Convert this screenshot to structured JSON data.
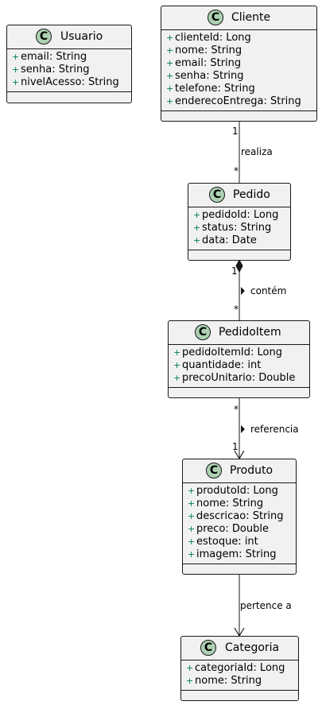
{
  "classes": {
    "usuario": {
      "name": "Usuario",
      "stereotype": "C",
      "attributes": [
        {
          "vis": "+",
          "text": "email: String"
        },
        {
          "vis": "+",
          "text": "senha: String"
        },
        {
          "vis": "+",
          "text": "nivelAcesso: String"
        }
      ]
    },
    "cliente": {
      "name": "Cliente",
      "stereotype": "C",
      "attributes": [
        {
          "vis": "+",
          "text": "clienteId: Long"
        },
        {
          "vis": "+",
          "text": "nome: String"
        },
        {
          "vis": "+",
          "text": "email: String"
        },
        {
          "vis": "+",
          "text": "senha: String"
        },
        {
          "vis": "+",
          "text": "telefone: String"
        },
        {
          "vis": "+",
          "text": "enderecoEntrega: String"
        }
      ]
    },
    "pedido": {
      "name": "Pedido",
      "stereotype": "C",
      "attributes": [
        {
          "vis": "+",
          "text": "pedidoId: Long"
        },
        {
          "vis": "+",
          "text": "status: String"
        },
        {
          "vis": "+",
          "text": "data: Date"
        }
      ]
    },
    "pedidoitem": {
      "name": "PedidoItem",
      "stereotype": "C",
      "attributes": [
        {
          "vis": "+",
          "text": "pedidoItemId: Long"
        },
        {
          "vis": "+",
          "text": "quantidade: int"
        },
        {
          "vis": "+",
          "text": "precoUnitario: Double"
        }
      ]
    },
    "produto": {
      "name": "Produto",
      "stereotype": "C",
      "attributes": [
        {
          "vis": "+",
          "text": "produtoId: Long"
        },
        {
          "vis": "+",
          "text": "nome: String"
        },
        {
          "vis": "+",
          "text": "descricao: String"
        },
        {
          "vis": "+",
          "text": "preco: Double"
        },
        {
          "vis": "+",
          "text": "estoque: int"
        },
        {
          "vis": "+",
          "text": "imagem: String"
        }
      ]
    },
    "categoria": {
      "name": "Categoria",
      "stereotype": "C",
      "attributes": [
        {
          "vis": "+",
          "text": "categoriaId: Long"
        },
        {
          "vis": "+",
          "text": "nome: String"
        }
      ]
    }
  },
  "relations": {
    "realiza": {
      "label": "realiza",
      "from_mult": "1",
      "to_mult": "*"
    },
    "contem": {
      "label": "contém",
      "direction": ">",
      "from_mult": "1",
      "to_mult": "*"
    },
    "referencia": {
      "label": "referencia",
      "direction": ">",
      "from_mult": "*",
      "to_mult": "1"
    },
    "pertence": {
      "label": "pertence a"
    }
  },
  "colors": {
    "class_fill": "#f1f1f1",
    "border": "#181818",
    "badge": "#add1b2",
    "visibility": "#038048"
  }
}
